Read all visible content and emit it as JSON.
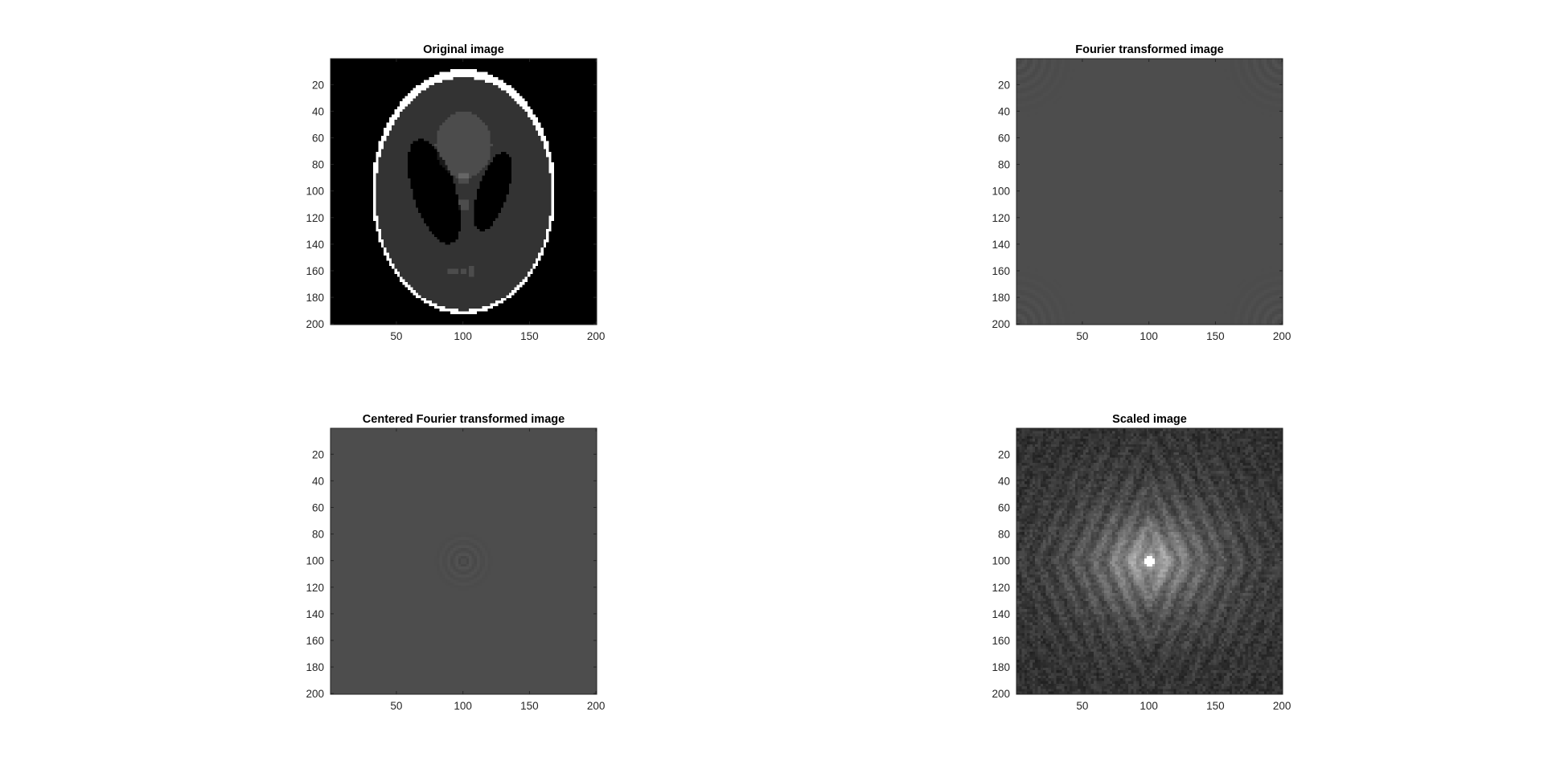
{
  "chart_data": [
    {
      "type": "heatmap",
      "image": "phantom",
      "title": "Original image",
      "xlabel": "",
      "ylabel": "",
      "xlim": [
        0.5,
        200.5
      ],
      "ylim": [
        0.5,
        200.5
      ],
      "y_direction": "reverse",
      "colormap": "gray",
      "xticks": [
        50,
        100,
        150,
        200
      ],
      "yticks": [
        20,
        40,
        60,
        80,
        100,
        120,
        140,
        160,
        180,
        200
      ]
    },
    {
      "type": "heatmap",
      "image": "fourier_transform",
      "title": "Fourier transformed image",
      "xlabel": "",
      "ylabel": "",
      "xlim": [
        0.5,
        200.5
      ],
      "ylim": [
        0.5,
        200.5
      ],
      "y_direction": "reverse",
      "colormap": "gray",
      "xticks": [
        50,
        100,
        150,
        200
      ],
      "yticks": [
        20,
        40,
        60,
        80,
        100,
        120,
        140,
        160,
        180,
        200
      ]
    },
    {
      "type": "heatmap",
      "image": "centered_fourier_transform",
      "title": "Centered Fourier transformed image",
      "xlabel": "",
      "ylabel": "",
      "xlim": [
        0.5,
        200.5
      ],
      "ylim": [
        0.5,
        200.5
      ],
      "y_direction": "reverse",
      "colormap": "gray",
      "xticks": [
        50,
        100,
        150,
        200
      ],
      "yticks": [
        20,
        40,
        60,
        80,
        100,
        120,
        140,
        160,
        180,
        200
      ]
    },
    {
      "type": "heatmap",
      "image": "log_scaled_fourier_transform",
      "title": "Scaled image",
      "xlabel": "",
      "ylabel": "",
      "xlim": [
        0.5,
        200.5
      ],
      "ylim": [
        0.5,
        200.5
      ],
      "y_direction": "reverse",
      "colormap": "gray",
      "xticks": [
        50,
        100,
        150,
        200
      ],
      "yticks": [
        20,
        40,
        60,
        80,
        100,
        120,
        140,
        160,
        180,
        200
      ]
    }
  ]
}
